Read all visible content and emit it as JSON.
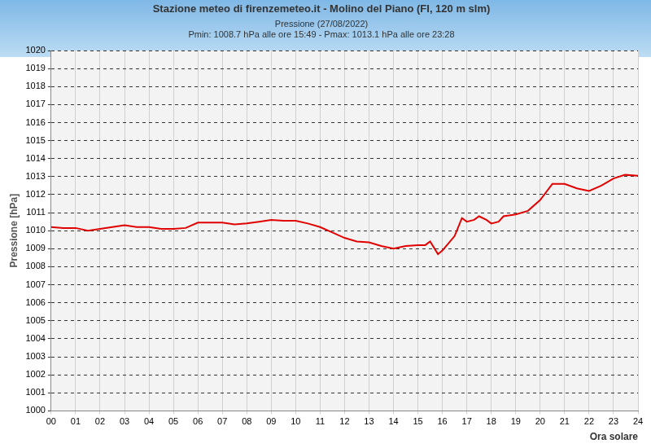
{
  "chart_data": {
    "type": "line",
    "title": "Stazione meteo di firenzemeteo.it - Molino del Piano (FI, 120 m slm)",
    "subtitle": [
      "Pressione (27/08/2022)",
      "Pmin: 1008.7 hPa alle ore 15:49 - Pmax: 1013.1 hPa alle ore 23:28"
    ],
    "x_label": "Ora solare",
    "y_label": "Pressione [hPa]",
    "x": [
      0,
      0.5,
      1,
      1.5,
      2,
      2.5,
      3,
      3.5,
      4,
      4.5,
      5,
      5.5,
      6,
      6.5,
      7,
      7.5,
      8,
      8.5,
      9,
      9.5,
      10,
      10.5,
      11,
      11.5,
      12,
      12.5,
      13,
      13.5,
      14,
      14.5,
      15,
      15.3,
      15.5,
      15.82,
      16,
      16.5,
      16.8,
      17,
      17.3,
      17.5,
      17.8,
      18,
      18.3,
      18.5,
      19,
      19.5,
      20,
      20.5,
      21,
      21.5,
      22,
      22.5,
      23,
      23.47,
      24
    ],
    "values": [
      1010.2,
      1010.15,
      1010.15,
      1010.0,
      1010.1,
      1010.2,
      1010.3,
      1010.2,
      1010.2,
      1010.1,
      1010.1,
      1010.15,
      1010.45,
      1010.45,
      1010.45,
      1010.35,
      1010.4,
      1010.5,
      1010.6,
      1010.55,
      1010.55,
      1010.4,
      1010.2,
      1009.9,
      1009.6,
      1009.4,
      1009.35,
      1009.15,
      1009.0,
      1009.15,
      1009.2,
      1009.2,
      1009.4,
      1008.7,
      1008.9,
      1009.7,
      1010.7,
      1010.5,
      1010.6,
      1010.8,
      1010.6,
      1010.4,
      1010.5,
      1010.8,
      1010.9,
      1011.1,
      1011.7,
      1012.6,
      1012.6,
      1012.35,
      1012.2,
      1012.5,
      1012.9,
      1013.1,
      1013.05
    ],
    "color": "#e00000",
    "xlim": [
      0,
      24
    ],
    "xticks": [
      {
        "value": 0,
        "label": "00"
      },
      {
        "value": 1,
        "label": "01"
      },
      {
        "value": 2,
        "label": "02"
      },
      {
        "value": 3,
        "label": "03"
      },
      {
        "value": 4,
        "label": "04"
      },
      {
        "value": 5,
        "label": "05"
      },
      {
        "value": 6,
        "label": "06"
      },
      {
        "value": 7,
        "label": "07"
      },
      {
        "value": 8,
        "label": "08"
      },
      {
        "value": 9,
        "label": "09"
      },
      10,
      11,
      12,
      13,
      14,
      15,
      16,
      17,
      18,
      19,
      20,
      21,
      22,
      23,
      24
    ],
    "ylim": [
      1000,
      1020
    ],
    "yticks": [
      1000,
      1001,
      1002,
      1003,
      1004,
      1005,
      1006,
      1007,
      1008,
      1009,
      1010,
      1011,
      1012,
      1013,
      1014,
      1015,
      1016,
      1017,
      1018,
      1019,
      1020
    ],
    "grid": true
  }
}
